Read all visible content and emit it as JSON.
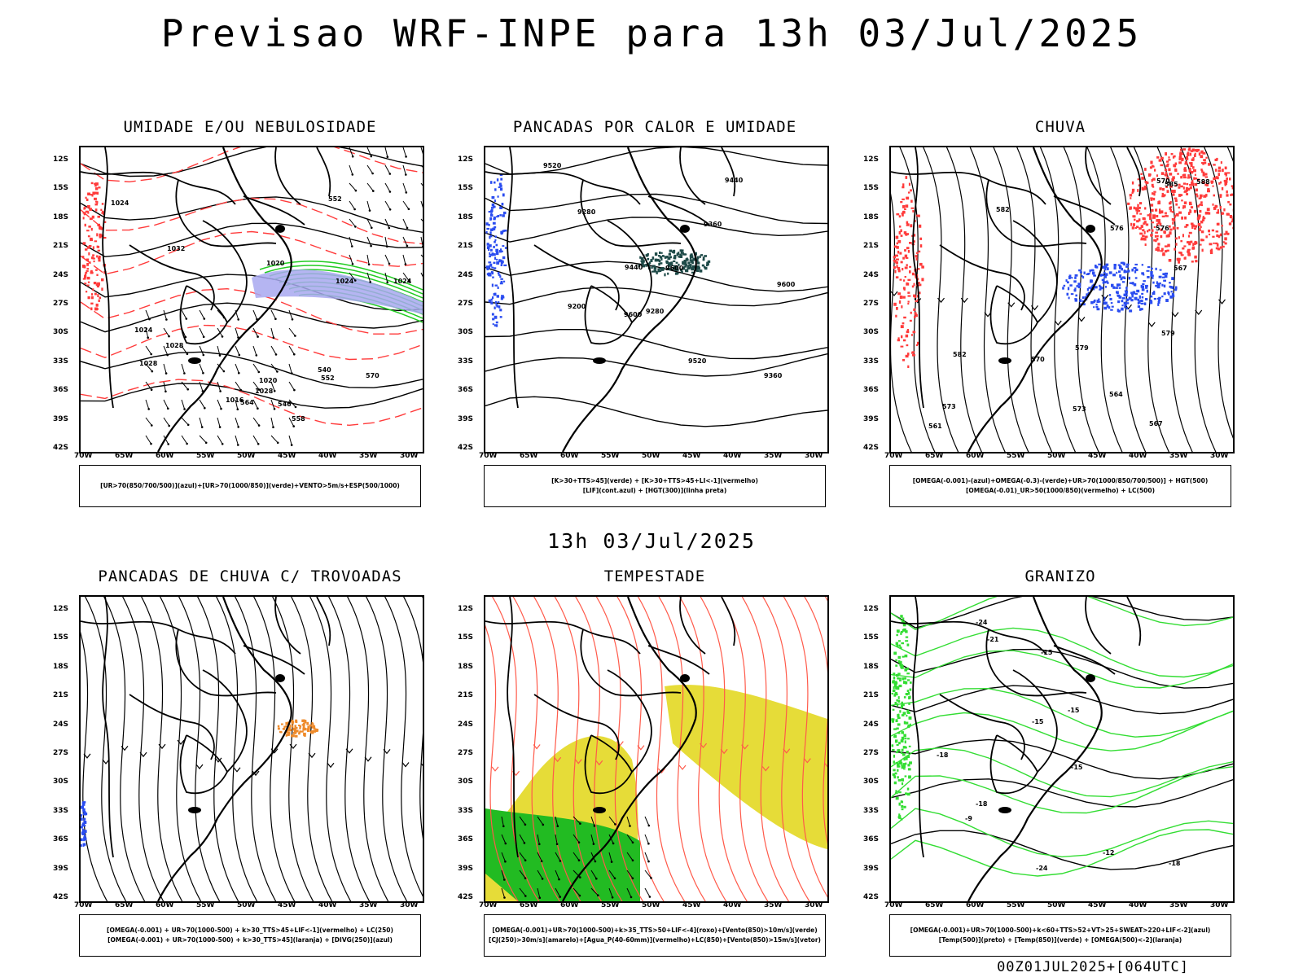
{
  "page": {
    "title": "Previsao WRF-INPE  para 13h 03/Jul/2025",
    "mid_title": "13h 03/Jul/2025",
    "footer": "00Z01JUL2025+[064UTC]"
  },
  "axes": {
    "lat_ticks": [
      "12S",
      "15S",
      "18S",
      "21S",
      "24S",
      "27S",
      "30S",
      "33S",
      "36S",
      "39S",
      "42S"
    ],
    "lon_ticks": [
      "70W",
      "65W",
      "60W",
      "55W",
      "50W",
      "45W",
      "40W",
      "35W",
      "30W"
    ]
  },
  "panels": [
    {
      "title": "UMIDADE E/OU NEBULOSIDADE",
      "legend": [
        "[UR>70(850/700/500)](azul)+[UR>70(1000/850)](verde)+VENTO>5m/s+ESP(500/1000)"
      ],
      "contour_labels": [
        "1016",
        "1020",
        "1020",
        "1024",
        "1024",
        "1028",
        "1028",
        "1024",
        "1024",
        "1032",
        "1028",
        "570",
        "564",
        "558",
        "552",
        "546",
        "540",
        "552"
      ]
    },
    {
      "title": "PANCADAS POR CALOR E UMIDADE",
      "legend": [
        "[K>30+TTS>45](verde) + [K>30+TTS>45+LI<-1](vermelho)",
        "[LIF](cont.azul) + [HGT(300)](linha preta)"
      ],
      "contour_labels": [
        "9600",
        "9600",
        "9600",
        "9520",
        "9440",
        "9360",
        "9280",
        "9200",
        "9520",
        "9440",
        "9360",
        "9280"
      ]
    },
    {
      "title": "CHUVA",
      "legend": [
        "[OMEGA(-0.001)-(azul)+OMEGA(-0.3)-(verde)+UR>70(1000/850/700/500)] + HGT(500)",
        "[OMEGA(-0.01)_UR>50(1000/850)(vermelho) + LC(500)"
      ],
      "contour_labels": [
        "585",
        "582",
        "588",
        "579",
        "576",
        "573",
        "570",
        "567",
        "564",
        "582",
        "579",
        "576",
        "573",
        "570",
        "567",
        "561"
      ]
    },
    {
      "title": "PANCADAS DE CHUVA C/ TROVOADAS",
      "legend": [
        "[OMEGA(-0.001) + UR>70(1000-500) + k>30_TTS>45+LIF<-1](vermelho) + LC(250)",
        "[OMEGA(-0.001) + UR>70(1000-500) + k>30_TTS>45](laranja) + [DIVG(250)](azul)"
      ],
      "contour_labels": []
    },
    {
      "title": "TEMPESTADE",
      "legend": [
        "[OMEGA(-0.001)+UR>70(1000-500)+k>35_TTS>50+LIF<-4](roxo)+[Vento(850)>10m/s](verde)",
        "[CJ(250)>30m/s](amarelo)+[Agua_P(40-60mm)](vermelho)+LC(850)+[Vento(850)>15m/s](vetor)"
      ],
      "contour_labels": []
    },
    {
      "title": "GRANIZO",
      "legend": [
        "[OMEGA(-0.001)+UR>70(1000-500)+k<60+TTS>52+VT>25+SWEAT>220+LIF<-2](azul)",
        "[Temp(500)](preto) + [Temp(850)](verde) + [OMEGA(500)<-2](laranja)"
      ],
      "contour_labels": [
        "-9",
        "-12",
        "-15",
        "-18",
        "-21",
        "-24",
        "-24",
        "-15",
        "-18",
        "-15",
        "-15",
        "-18"
      ]
    }
  ]
}
